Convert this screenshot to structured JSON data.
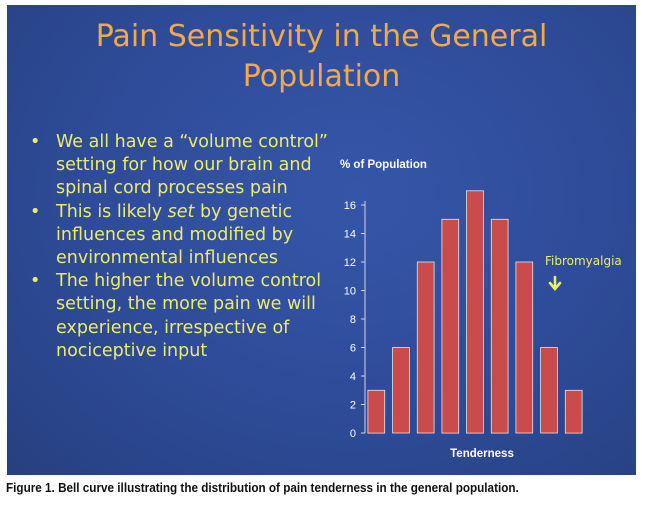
{
  "slide": {
    "title_lines": [
      "Pain Sensitivity in the General",
      "Population"
    ],
    "bullets": [
      {
        "before": "We all have a “volume control” setting for how our brain and spinal cord processes pain",
        "emph": "",
        "after": ""
      },
      {
        "before": "This is likely ",
        "emph": "set",
        "after": " by genetic influences and modified by environmental influences"
      },
      {
        "before": "The higher the volume control setting, the more pain we will experience, irrespective of nociceptive input",
        "emph": "",
        "after": ""
      }
    ],
    "bullet_glyph": "•"
  },
  "caption": "Figure 1. Bell curve illustrating the distribution of pain tenderness in the general population.",
  "colors": {
    "background": "#2e4b98",
    "title": "#f2a94a",
    "text": "#ecec6a",
    "bar": "#c94b4b",
    "axis": "#d0d6e8",
    "label": "#ffffff"
  },
  "chart_data": {
    "type": "bar",
    "title": "",
    "ylabel": "% of Population",
    "xlabel": "Tenderness",
    "categories": [
      "",
      "",
      "",
      "",
      "",
      "",
      "",
      "",
      ""
    ],
    "values": [
      3,
      6,
      12,
      15,
      17,
      15,
      12,
      6,
      3
    ],
    "ylim": [
      0,
      16
    ],
    "yticks": [
      0,
      2,
      4,
      6,
      8,
      10,
      12,
      14,
      16
    ],
    "grid": false,
    "annotations": [
      {
        "text": "Fibromyalgia",
        "arrow": "down",
        "near_category_index": 8
      }
    ]
  }
}
